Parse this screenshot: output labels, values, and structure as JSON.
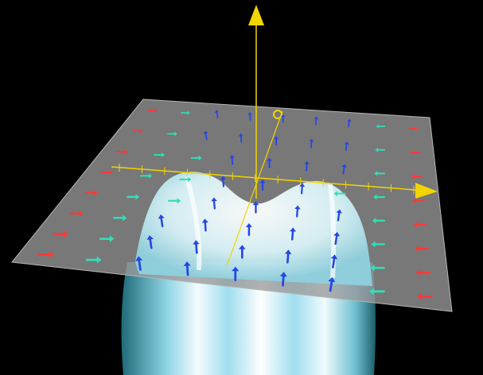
{
  "scene": {
    "background_color": "#000000",
    "plane_color": "#8f8f8f",
    "axis_color": "#f2d400",
    "surface_color": "#aee8f2",
    "surface_highlight": "#f4fbff"
  },
  "vector_field": {
    "colors": {
      "red": "#ff3838",
      "teal": "#2fe0b8",
      "blue": "#2446e6",
      "yellow": "#f2d400"
    },
    "rows": [
      [
        "red",
        "teal",
        "blue",
        "blue",
        "blue",
        "blue",
        "blue",
        "teal",
        "red"
      ],
      [
        "red",
        "teal",
        "blue",
        "blue",
        "blue",
        "blue",
        "blue",
        "teal",
        "red"
      ],
      [
        "red",
        "teal",
        "teal",
        "blue",
        "blue",
        "blue",
        "blue",
        "teal",
        "red"
      ],
      [
        "red",
        "teal",
        "teal",
        "blue",
        "blue",
        "blue",
        "teal",
        "teal",
        "red"
      ],
      [
        "red",
        "teal",
        "teal",
        "blue",
        "blue",
        "blue",
        "blue",
        "teal",
        "red"
      ],
      [
        "red",
        "teal",
        "blue",
        "blue",
        "blue",
        "blue",
        "blue",
        "teal",
        "red"
      ],
      [
        "red",
        "teal",
        "blue",
        "blue",
        "blue",
        "blue",
        "blue",
        "teal",
        "red"
      ],
      [
        "red",
        "teal",
        "blue",
        "blue",
        "blue",
        "blue",
        "blue",
        "teal",
        "red"
      ]
    ]
  }
}
